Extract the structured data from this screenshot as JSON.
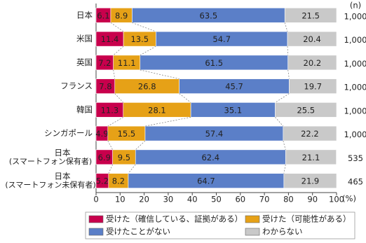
{
  "chart_data": {
    "type": "stacked_bar_horizontal",
    "categories": [
      "日本",
      "米国",
      "英国",
      "フランス",
      "韓国",
      "シンガポール",
      "日本\n(スマートフォン保有者)",
      "日本\n(スマートフォン未保有者)"
    ],
    "series": [
      {
        "name": "受けた（確信している、証拠がある）",
        "color": "#c8004c",
        "values": [
          6.1,
          11.4,
          7.2,
          7.8,
          11.3,
          4.9,
          6.9,
          5.2
        ]
      },
      {
        "name": "受けた（可能性がある）",
        "color": "#e6a117",
        "values": [
          8.9,
          13.5,
          11.1,
          26.8,
          28.1,
          15.5,
          9.5,
          8.2
        ]
      },
      {
        "name": "受けたことがない",
        "color": "#5b7fc8",
        "values": [
          63.5,
          54.7,
          61.5,
          45.7,
          35.1,
          57.4,
          62.4,
          64.7
        ]
      },
      {
        "name": "わからない",
        "color": "#c9c9c9",
        "values": [
          21.5,
          20.4,
          20.2,
          19.7,
          25.5,
          22.2,
          21.1,
          21.9
        ]
      }
    ],
    "sample_size_label": "(n)",
    "sample_sizes": [
      {
        "value": 1000,
        "label": "1,000"
      },
      {
        "value": 1000,
        "label": "1,000"
      },
      {
        "value": 1000,
        "label": "1,000"
      },
      {
        "value": 1000,
        "label": "1,000"
      },
      {
        "value": 1000,
        "label": "1,000"
      },
      {
        "value": 1000,
        "label": "1,000"
      },
      535,
      465
    ],
    "x_unit": "(%)",
    "xlim": [
      0,
      100
    ],
    "xticks": [
      0,
      10,
      20,
      30,
      40,
      50,
      60,
      70,
      80,
      90,
      100
    ]
  }
}
